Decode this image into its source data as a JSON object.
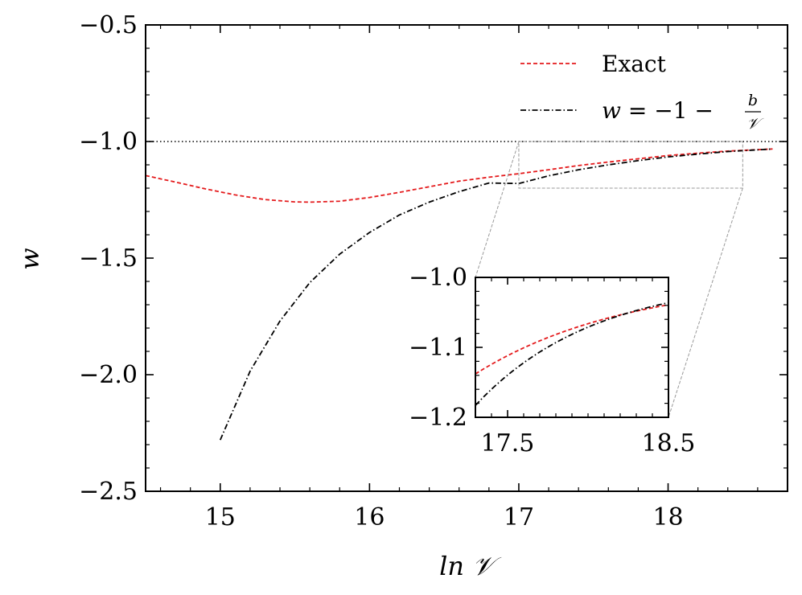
{
  "chart_data": {
    "type": "line",
    "xlabel": "ln 𝒱",
    "ylabel": "w",
    "xlim": [
      14.5,
      18.8
    ],
    "ylim": [
      -2.5,
      -0.5
    ],
    "xticks": [
      15,
      16,
      17,
      18
    ],
    "yticks": [
      -2.5,
      -2.0,
      -1.5,
      -1.0,
      -0.5
    ],
    "grid": false,
    "legend_position": "top-right",
    "reference_line": {
      "y": -1.0,
      "style": "dotted"
    },
    "series": [
      {
        "name": "Exact",
        "color": "#e41a1c",
        "style": "dashed",
        "x": [
          14.5,
          14.7,
          14.9,
          15.1,
          15.3,
          15.5,
          15.6,
          15.8,
          16.0,
          16.2,
          16.4,
          16.6,
          16.8,
          17.0,
          17.2,
          17.4,
          17.6,
          17.8,
          18.0,
          18.2,
          18.4,
          18.7
        ],
        "y": [
          -1.146,
          -1.174,
          -1.203,
          -1.229,
          -1.249,
          -1.259,
          -1.26,
          -1.256,
          -1.24,
          -1.218,
          -1.194,
          -1.17,
          -1.153,
          -1.138,
          -1.121,
          -1.103,
          -1.088,
          -1.074,
          -1.06,
          -1.05,
          -1.041,
          -1.032
        ]
      },
      {
        "name": "w = −1 − b/𝒱",
        "legend_parts": {
          "lhs": "w",
          "mid": " = −1 − ",
          "num": "b",
          "den": "𝒱"
        },
        "color": "#000000",
        "style": "dashdot",
        "x": [
          15.0,
          15.2,
          15.4,
          15.6,
          15.8,
          16.0,
          16.2,
          16.4,
          16.6,
          16.8,
          17.0,
          17.2,
          17.4,
          17.6,
          17.8,
          18.0,
          18.2,
          18.4,
          18.7
        ],
        "y": [
          -2.28,
          -1.985,
          -1.77,
          -1.605,
          -1.483,
          -1.39,
          -1.315,
          -1.26,
          -1.215,
          -1.178,
          -1.18,
          -1.147,
          -1.121,
          -1.1,
          -1.082,
          -1.066,
          -1.054,
          -1.043,
          -1.032
        ]
      }
    ],
    "inset": {
      "xlim": [
        17.3,
        18.5
      ],
      "ylim": [
        -1.2,
        -1.0
      ],
      "xticks": [
        17.5,
        18.5
      ],
      "yticks": [
        -1.2,
        -1.1,
        -1.0
      ],
      "zoom_region": {
        "x": [
          17.0,
          18.5
        ],
        "y": [
          -1.2,
          -1.0
        ]
      }
    }
  }
}
